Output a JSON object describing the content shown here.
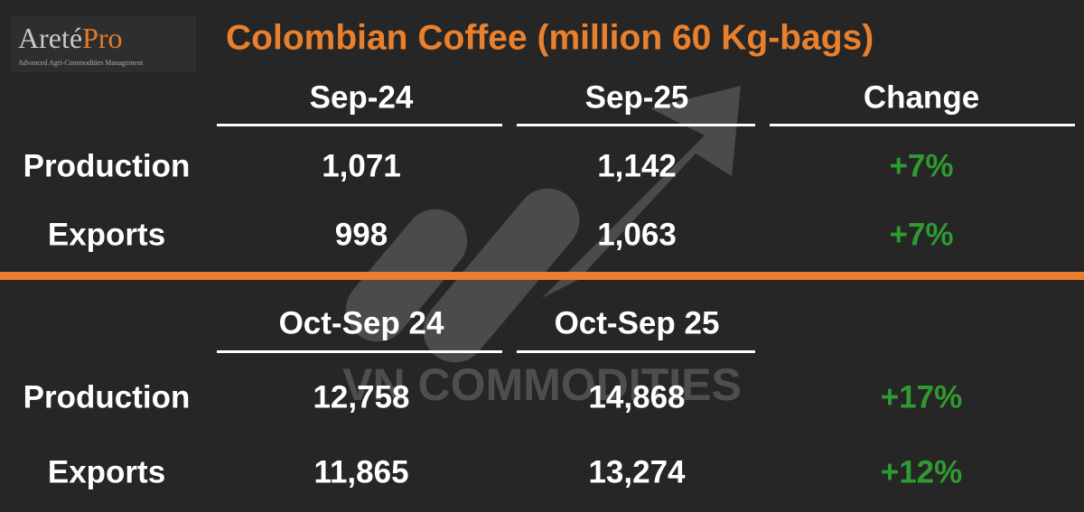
{
  "logo": {
    "name": "Areté",
    "highlight": "Pro",
    "tagline": "Advanced Agri-Commodities Management"
  },
  "title": "Colombian Coffee (million 60 Kg-bags)",
  "watermark": "VN COMMODITIES",
  "sections": [
    {
      "header": [
        "Sep-24",
        "Sep-25",
        "Change"
      ],
      "rows": [
        [
          "Production",
          "1,071",
          "1,142",
          "+7%"
        ],
        [
          "Exports",
          "998",
          "1,063",
          "+7%"
        ]
      ]
    },
    {
      "header": [
        "Oct-Sep 24",
        "Oct-Sep 25"
      ],
      "rows": [
        [
          "Production",
          "12,758",
          "14,868",
          "+17%"
        ],
        [
          "Exports",
          "11,865",
          "13,274",
          "+12%"
        ]
      ]
    }
  ]
}
